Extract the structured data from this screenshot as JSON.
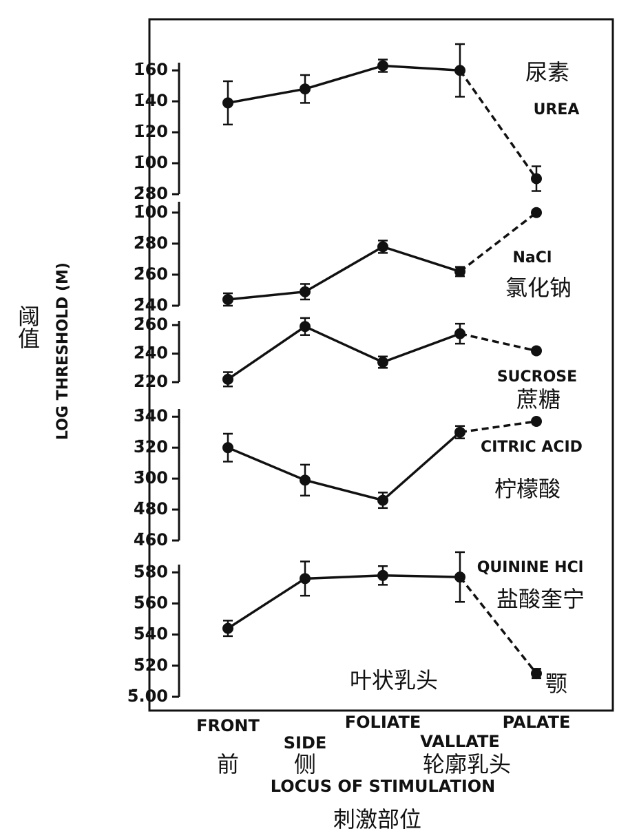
{
  "chart_data": {
    "type": "line",
    "y_label": "LOG THRESHOLD (M)",
    "y_label_zh": "阈值",
    "x_label": "LOCUS OF STIMULATION",
    "x_label_zh": "刺激部位",
    "categories": [
      "FRONT",
      "SIDE",
      "FOLIATE",
      "VALLATE",
      "PALATE"
    ],
    "categories_zh": [
      "前",
      "侧",
      "叶状乳头",
      "轮廓乳头",
      "颚"
    ],
    "color": "#111111",
    "last_segment_dashed": true,
    "panels": [
      {
        "name": "UREA",
        "name_zh": "尿素",
        "ylim": [
          -1.2,
          -0.35
        ],
        "yticks": [
          {
            "value": -0.4,
            "label": "1̄60"
          },
          {
            "value": -0.6,
            "label": "1̄40"
          },
          {
            "value": -0.8,
            "label": "1̄20"
          },
          {
            "value": -1.0,
            "label": "1̄00"
          },
          {
            "value": -1.2,
            "label": "2̄80"
          }
        ],
        "values": [
          -0.61,
          -0.52,
          -0.37,
          -0.4,
          -1.1
        ],
        "errors": [
          0.14,
          0.09,
          0.04,
          0.17,
          0.08
        ]
      },
      {
        "name": "NaCl",
        "name_zh": "氯化钠",
        "ylim": [
          -1.6,
          -0.93
        ],
        "yticks": [
          {
            "value": -1.0,
            "label": "1̄00"
          },
          {
            "value": -1.2,
            "label": "2̄80"
          },
          {
            "value": -1.4,
            "label": "2̄60"
          },
          {
            "value": -1.6,
            "label": "2̄40"
          }
        ],
        "values": [
          -1.56,
          -1.51,
          -1.22,
          -1.38,
          -1.0
        ],
        "errors": [
          0.04,
          0.05,
          0.04,
          0.03,
          0
        ]
      },
      {
        "name": "SUCROSE",
        "name_zh": "蔗糖",
        "ylim": [
          -1.8,
          -1.37
        ],
        "yticks": [
          {
            "value": -1.4,
            "label": "2̄60"
          },
          {
            "value": -1.6,
            "label": "2̄40"
          },
          {
            "value": -1.8,
            "label": "2̄20"
          }
        ],
        "values": [
          -1.78,
          -1.41,
          -1.66,
          -1.46,
          -1.58
        ],
        "errors": [
          0.05,
          0.06,
          0.04,
          0.07,
          0
        ]
      },
      {
        "name": "CITRIC ACID",
        "name_zh": "柠檬酸",
        "ylim": [
          -3.4,
          -2.55
        ],
        "yticks": [
          {
            "value": -2.6,
            "label": "3̄40"
          },
          {
            "value": -2.8,
            "label": "3̄20"
          },
          {
            "value": -3.0,
            "label": "3̄00"
          },
          {
            "value": -3.2,
            "label": "4̄80"
          },
          {
            "value": -3.4,
            "label": "4̄60"
          }
        ],
        "values": [
          -2.8,
          -3.01,
          -3.14,
          -2.7,
          -2.63
        ],
        "errors": [
          0.09,
          0.1,
          0.05,
          0.04,
          0
        ]
      },
      {
        "name": "QUININE HCl",
        "name_zh": "盐酸奎宁",
        "ylim": [
          -5.0,
          -4.15
        ],
        "yticks": [
          {
            "value": -4.2,
            "label": "5̄80"
          },
          {
            "value": -4.4,
            "label": "5̄60"
          },
          {
            "value": -4.6,
            "label": "5̄40"
          },
          {
            "value": -4.8,
            "label": "5̄20"
          },
          {
            "value": -5.0,
            "label": "5̄.00"
          }
        ],
        "values": [
          -4.56,
          -4.24,
          -4.22,
          -4.23,
          -4.85
        ],
        "errors": [
          0.05,
          0.11,
          0.06,
          0.16,
          0.03
        ]
      }
    ]
  }
}
